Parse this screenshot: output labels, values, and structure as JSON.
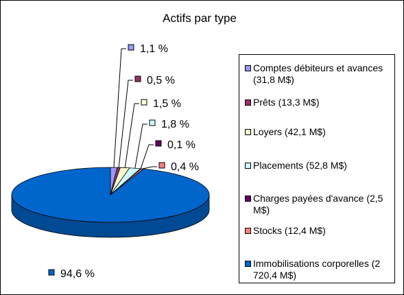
{
  "chart_data": {
    "type": "pie",
    "title": "Actifs par type",
    "categories": [
      "Comptes débiteurs et avances (31,8 M$)",
      "Prêts (13,3 M$)",
      "Loyers (42,1 M$)",
      "Placements (52,8 M$)",
      "Charges payées d'avance (2,5 M$)",
      "Stocks (12,4 M$)",
      "Immobilisations corporelles (2 720,4 M$)"
    ],
    "values": [
      1.1,
      0.5,
      1.5,
      1.8,
      0.1,
      0.4,
      94.6
    ],
    "data_labels": [
      "1,1 %",
      "0,5 %",
      "1,5 %",
      "1,8 %",
      "0,1 %",
      "0,4 %",
      "94,6 %"
    ],
    "colors": [
      "#9999ff",
      "#993366",
      "#ffffcc",
      "#ccffff",
      "#660066",
      "#ff8080",
      "#0066cc"
    ],
    "legend_position": "right",
    "style": "3d"
  }
}
